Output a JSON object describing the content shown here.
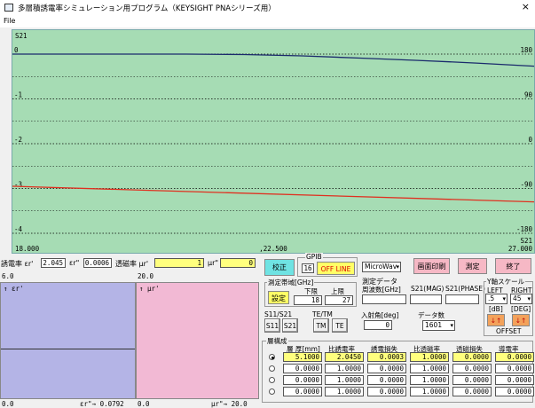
{
  "window": {
    "title": "多層積誘電率シミュレーション用プログラム（KEYSIGHT PNAシリーズ用）",
    "close_glyph": "×"
  },
  "menu": {
    "file": "File"
  },
  "chart_data": {
    "type": "line",
    "title": "S21",
    "x": [
      18.0,
      27.0
    ],
    "xlim": [
      18.0,
      27.0
    ],
    "x_tick_labels": [
      "18.000",
      ",22.500",
      "27.000"
    ],
    "ylim_left": [
      -4,
      0
    ],
    "y_left_tick_labels": [
      "0",
      "-1",
      "-2",
      "-3",
      "-4"
    ],
    "ylim_right": [
      -180,
      180
    ],
    "y_right_tick_labels": [
      "180",
      "90",
      "0",
      "-90",
      "-180"
    ],
    "right_axis_title": "S21",
    "grid": true,
    "series": [
      {
        "color": "#1a2a6c",
        "x": [
          18.0,
          19.0,
          20.0,
          21.0,
          22.0,
          23.0,
          24.0,
          25.0,
          26.0,
          27.0
        ],
        "y": [
          -0.0,
          -0.0,
          0.0,
          0.0,
          -0.01,
          -0.04,
          -0.09,
          -0.14,
          -0.2,
          -0.27
        ]
      },
      {
        "color": "#e03020",
        "x": [
          18.0,
          27.0
        ],
        "y": [
          -2.95,
          -3.3
        ]
      }
    ]
  },
  "params": {
    "epsilon_label": "誘電率 εr'",
    "epsilon_value": "2.045",
    "epsilon_imag_label": "εr\"",
    "epsilon_imag_value": "0.0006",
    "mu_label": "透磁率 μr'",
    "mu_value": "1",
    "mu_imag_label": "μr\"",
    "mu_imag_value": "0"
  },
  "lower_plots": {
    "left_top_y": "6.0",
    "left_axis": "↑ εr'",
    "left_bottom_x0": "0.0",
    "left_bottom_x1": "εr\"→ 0.0792",
    "right_top_y": "20.0",
    "right_axis": "↑ μr'",
    "right_bottom_x0": "0.0",
    "right_bottom_x1": "μr\"→ 20.0"
  },
  "buttons": {
    "correct": "校正",
    "gpib_label": "GPIB",
    "gpib_addr": "16",
    "offline": "OFF LINE",
    "print_screen": "画面印刷",
    "measure": "測定",
    "exit": "終了",
    "band_set": "設定"
  },
  "instrument_select": "MicroWav",
  "band": {
    "label": "測定帯域[GHz]",
    "lower_label": "下限",
    "upper_label": "上限",
    "lower_value": "18",
    "upper_value": "27"
  },
  "meas_data": {
    "label": "測定データ",
    "col1": "周波数[GHz]",
    "col2": "S21(MAG)",
    "col3": "S21(PHASE)"
  },
  "y_scale": {
    "label": "Y軸スケール",
    "left_label": "LEFT",
    "right_label": "RIGHT",
    "left_value": ".5",
    "right_value": "45",
    "left_unit": "[dB]",
    "right_unit": "[DEG]",
    "offset_label": "OFFSET",
    "arrows": "↓↑"
  },
  "sparam": {
    "label": "S11/S21",
    "s11": "S11",
    "s21": "S21"
  },
  "tetm": {
    "label": "TE/TM",
    "tm": "TM",
    "te": "TE"
  },
  "incidence": {
    "label": "入射角[deg]",
    "value": "0"
  },
  "points": {
    "label": "データ数",
    "value": "1601"
  },
  "layers": {
    "label": "層構成",
    "headers": [
      "層 厚[mm]",
      "比誘電率",
      "誘電損失",
      "比透磁率",
      "透磁損失",
      "導電率"
    ],
    "rows": [
      {
        "selected": true,
        "values": [
          "5.1000",
          "2.0450",
          "0.0003",
          "1.0000",
          "0.0000",
          "0.0000"
        ]
      },
      {
        "selected": false,
        "values": [
          "0.0000",
          "1.0000",
          "0.0000",
          "1.0000",
          "0.0000",
          "0.0000"
        ]
      },
      {
        "selected": false,
        "values": [
          "0.0000",
          "1.0000",
          "0.0000",
          "1.0000",
          "0.0000",
          "0.0000"
        ]
      },
      {
        "selected": false,
        "values": [
          "0.0000",
          "1.0000",
          "0.0000",
          "1.0000",
          "0.0000",
          "0.0000"
        ]
      }
    ]
  }
}
